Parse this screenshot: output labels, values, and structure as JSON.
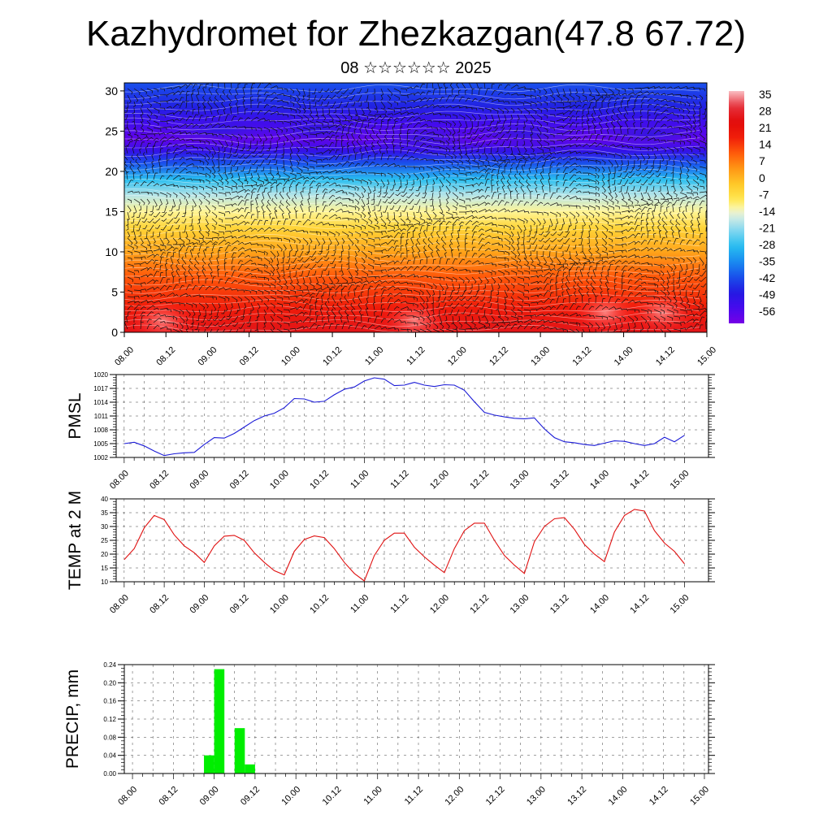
{
  "title": "Kazhydromet for Zhezkazgan(47.8 67.72)",
  "subtitle": "08 ☆☆☆☆☆☆ 2025",
  "colors": {
    "pmsl_line": "#1a1ad6",
    "temp_line": "#e01010",
    "precip_bar": "#00ee00",
    "wind_barb": "#111111"
  },
  "chart_data": [
    {
      "type": "heatmap",
      "name": "vertical-cross-section",
      "x_ticks": [
        "08.00",
        "08.12",
        "09.00",
        "09.12",
        "10.00",
        "10.12",
        "11.00",
        "11.12",
        "12.00",
        "12.12",
        "13.00",
        "13.12",
        "14.00",
        "14.12",
        "15.00"
      ],
      "y_ticks": [
        "0",
        "5",
        "10",
        "15",
        "20",
        "25",
        "30"
      ],
      "ylim": [
        0,
        31
      ],
      "colorbar_labels": [
        "35",
        "28",
        "21",
        "14",
        "7",
        "0",
        "-7",
        "-14",
        "-21",
        "-28",
        "-35",
        "-42",
        "-49",
        "-56"
      ],
      "colorbar_range": [
        -63,
        42
      ],
      "overlay": "wind barbs",
      "temperature_profile": {
        "levels_km": [
          0,
          3,
          7,
          10,
          13,
          15,
          17,
          19,
          21,
          22.5,
          24,
          26,
          28,
          31
        ],
        "values": [
          30,
          22,
          14,
          5,
          -3,
          -10,
          -17,
          -28,
          -42,
          -52,
          -60,
          -55,
          -48,
          -42
        ]
      }
    },
    {
      "type": "line",
      "name": "PMSL",
      "ylabel": "PMSL",
      "x_ticks": [
        "08.00",
        "08.12",
        "09.00",
        "09.12",
        "10.00",
        "10.12",
        "11.00",
        "11.12",
        "12.00",
        "12.12",
        "13.00",
        "13.12",
        "14.00",
        "14.12",
        "15.00"
      ],
      "y_ticks": [
        "1002",
        "1005",
        "1008",
        "1011",
        "1014",
        "1017",
        "1020"
      ],
      "ylim": [
        1002,
        1020
      ],
      "xlim": [
        -0.1,
        7.3
      ],
      "x": [
        0,
        0.125,
        0.25,
        0.375,
        0.5,
        0.625,
        0.75,
        0.875,
        1,
        1.125,
        1.25,
        1.375,
        1.5,
        1.625,
        1.75,
        1.875,
        2,
        2.125,
        2.25,
        2.375,
        2.5,
        2.625,
        2.75,
        2.875,
        3,
        3.125,
        3.25,
        3.375,
        3.5,
        3.625,
        3.75,
        3.875,
        4,
        4.125,
        4.25,
        4.375,
        4.5,
        4.625,
        4.75,
        4.875,
        5,
        5.125,
        5.25,
        5.375,
        5.5,
        5.625,
        5.75,
        5.875,
        6,
        6.125,
        6.25,
        6.375,
        6.5,
        6.625,
        6.75,
        6.875,
        7
      ],
      "y": [
        1005,
        1005.3,
        1004.5,
        1003.4,
        1002.4,
        1002.8,
        1003,
        1003.1,
        1004.8,
        1006.3,
        1006.2,
        1007.2,
        1008.6,
        1010,
        1011,
        1011.6,
        1012.8,
        1014.8,
        1014.7,
        1014,
        1014.2,
        1015.6,
        1016.8,
        1017.3,
        1018.6,
        1019.3,
        1019,
        1017.6,
        1017.7,
        1018.3,
        1017.7,
        1017.4,
        1017.8,
        1017.7,
        1016.6,
        1014.1,
        1011.8,
        1011.2,
        1010.8,
        1010.5,
        1010.4,
        1010.6,
        1008.2,
        1006.3,
        1005.4,
        1005.2,
        1004.8,
        1004.6,
        1005.1,
        1005.6,
        1005.5,
        1005,
        1004.6,
        1005,
        1006.4,
        1005.4,
        1006.8
      ]
    },
    {
      "type": "line",
      "name": "TEMP at 2 M",
      "ylabel": "TEMP at 2 M",
      "x_ticks": [
        "08.00",
        "08.12",
        "09.00",
        "09.12",
        "10.00",
        "10.12",
        "11.00",
        "11.12",
        "12.00",
        "12.12",
        "13.00",
        "13.12",
        "14.00",
        "14.12",
        "15.00"
      ],
      "y_ticks": [
        "10",
        "15",
        "20",
        "25",
        "30",
        "35",
        "40"
      ],
      "ylim": [
        10,
        40
      ],
      "xlim": [
        -0.1,
        7.3
      ],
      "x": [
        0,
        0.125,
        0.25,
        0.375,
        0.5,
        0.625,
        0.75,
        0.875,
        1,
        1.125,
        1.25,
        1.375,
        1.5,
        1.625,
        1.75,
        1.875,
        2,
        2.125,
        2.25,
        2.375,
        2.5,
        2.625,
        2.75,
        2.875,
        3,
        3.125,
        3.25,
        3.375,
        3.5,
        3.625,
        3.75,
        3.875,
        4,
        4.125,
        4.25,
        4.375,
        4.5,
        4.625,
        4.75,
        4.875,
        5,
        5.125,
        5.25,
        5.375,
        5.5,
        5.625,
        5.75,
        5.875,
        6,
        6.125,
        6.25,
        6.375,
        6.5,
        6.625,
        6.75,
        6.875,
        7
      ],
      "y": [
        18,
        22,
        29.5,
        34,
        32.5,
        27,
        23,
        20.5,
        17,
        23,
        26.5,
        26.8,
        25,
        20.5,
        17,
        14,
        12.5,
        21,
        25.3,
        26.6,
        26,
        22,
        17,
        13,
        10.3,
        19.5,
        25,
        27.6,
        27.6,
        22.5,
        19,
        16,
        13.3,
        22,
        28.5,
        31.2,
        31.2,
        25,
        19.5,
        16,
        13,
        24.5,
        30,
        32.8,
        33.2,
        29,
        23.5,
        20,
        17.3,
        28,
        34,
        36.2,
        35.6,
        28.5,
        24,
        21,
        16.5
      ]
    },
    {
      "type": "bar",
      "name": "PRECIP, mm",
      "ylabel": "PRECIP, mm",
      "x_ticks": [
        "08.00",
        "08.12",
        "09.00",
        "09.12",
        "10.00",
        "10.12",
        "11.00",
        "11.12",
        "12.00",
        "12.12",
        "13.00",
        "13.12",
        "14.00",
        "14.12",
        "15.00"
      ],
      "y_ticks": [
        "0.00",
        "0.04",
        "0.08",
        "0.12",
        "0.16",
        "0.20",
        "0.24"
      ],
      "ylim": [
        0,
        0.24
      ],
      "xlim": [
        -0.1,
        7.05
      ],
      "bar_width_days": 0.125,
      "x": [
        0.875,
        1,
        1.25,
        1.375
      ],
      "values": [
        0.04,
        0.23,
        0.1,
        0.02
      ]
    }
  ]
}
